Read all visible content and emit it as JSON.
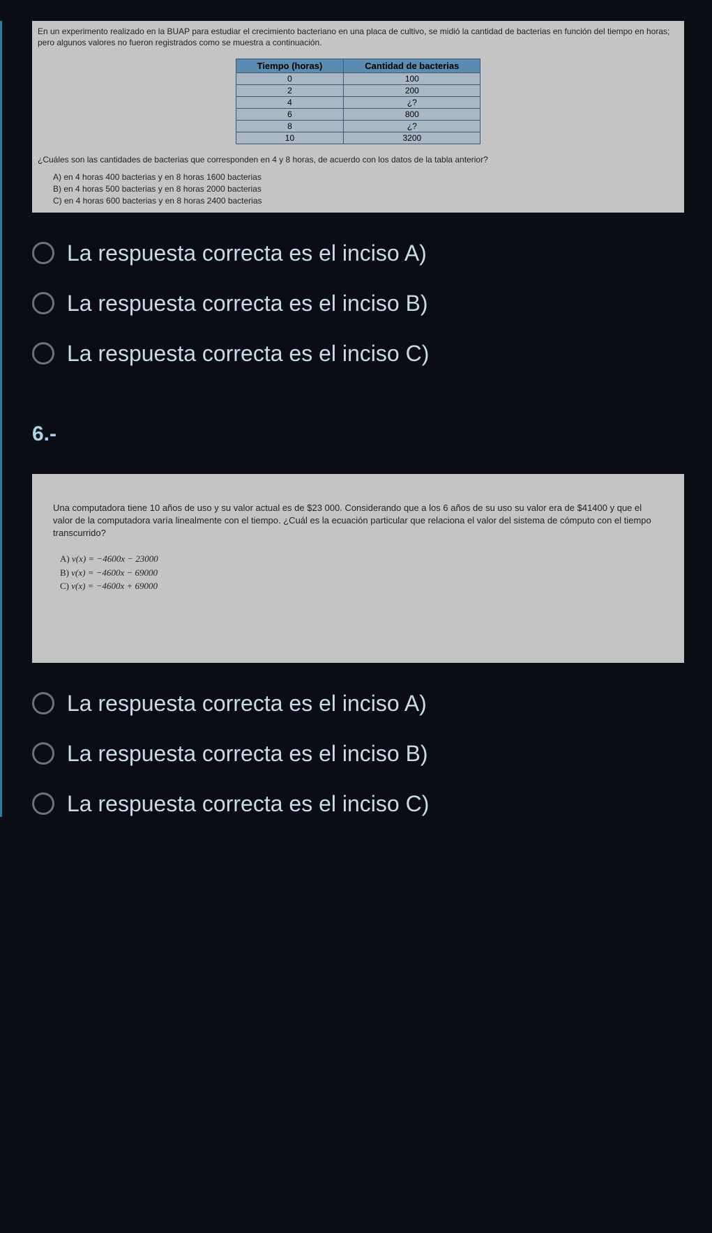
{
  "q5": {
    "intro": "En un experimento realizado en la BUAP para estudiar el crecimiento bacteriano en una placa de cultivo, se midió la cantidad de bacterias en función del tiempo en horas; pero algunos valores no fueron registrados como se muestra a continuación.",
    "table": {
      "headers": [
        "Tiempo (horas)",
        "Cantidad de bacterias"
      ],
      "rows": [
        [
          "0",
          "100"
        ],
        [
          "2",
          "200"
        ],
        [
          "4",
          "¿?"
        ],
        [
          "6",
          "800"
        ],
        [
          "8",
          "¿?"
        ],
        [
          "10",
          "3200"
        ]
      ]
    },
    "question": "¿Cuáles son las cantidades de bacterias que corresponden en 4 y 8 horas, de acuerdo con los datos de la tabla anterior?",
    "options": {
      "a": "A)  en 4 horas 400 bacterias y en 8 horas 1600 bacterias",
      "b": "B)  en 4 horas 500 bacterias y en 8 horas 2000 bacterias",
      "c": "C)  en 4 horas 600 bacterias y en 8 horas 2400 bacterias"
    },
    "answers": {
      "a": "La respuesta correcta es el inciso A)",
      "b": "La respuesta correcta es el inciso B)",
      "c": "La respuesta correcta es el inciso C)"
    }
  },
  "q6": {
    "number": "6.-",
    "text": "Una computadora tiene 10 años de uso y su valor actual es de $23 000. Considerando que a los 6 años de su uso su valor era de $41400 y que el valor de la computadora varía linealmente con el tiempo. ¿Cuál es la ecuación particular que relaciona el valor del sistema de cómputo con el tiempo transcurrido?",
    "options": {
      "a_label": "A)  ",
      "a_eq": "v(x) = −4600x − 23000",
      "b_label": "B)  ",
      "b_eq": "v(x) = −4600x − 69000",
      "c_label": "C)  ",
      "c_eq": "v(x) = −4600x + 69000"
    },
    "answers": {
      "a": "La respuesta correcta es el inciso A)",
      "b": "La respuesta correcta es el inciso B)",
      "c": "La respuesta correcta es el inciso C)"
    }
  }
}
